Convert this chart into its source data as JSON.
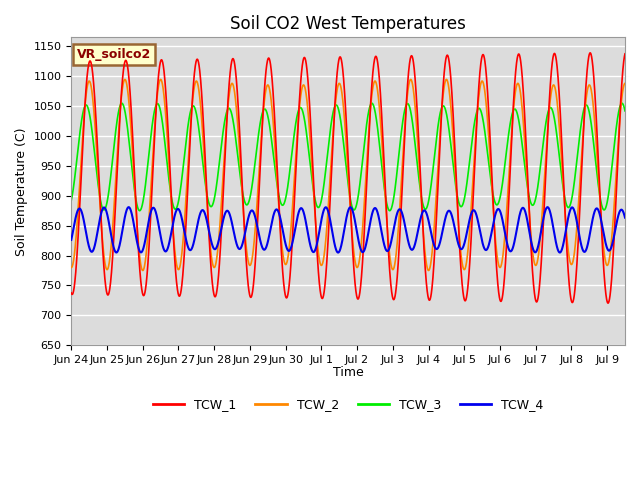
{
  "title": "Soil CO2 West Temperatures",
  "ylabel": "Soil Temperature (C)",
  "xlabel": "Time",
  "ylim": [
    650,
    1165
  ],
  "yticks": [
    650,
    700,
    750,
    800,
    850,
    900,
    950,
    1000,
    1050,
    1100,
    1150
  ],
  "annotation_text": "VR_soilco2",
  "annotation_bg": "#ffffcc",
  "annotation_border": "#996633",
  "bg_color": "#dcdcdc",
  "line_colors": {
    "TCW_1": "#ff0000",
    "TCW_2": "#ff8800",
    "TCW_3": "#00ee00",
    "TCW_4": "#0000ee"
  },
  "line_widths": {
    "TCW_1": 1.2,
    "TCW_2": 1.2,
    "TCW_3": 1.2,
    "TCW_4": 1.5
  },
  "xtick_labels": [
    "Jun 24",
    "Jun 25",
    "Jun 26",
    "Jun 27",
    "Jun 28",
    "Jun 29",
    "Jun 30",
    "Jul 1",
    "Jul 2",
    "Jul 3",
    "Jul 4",
    "Jul 5",
    "Jul 6",
    "Jul 7",
    "Jul 8",
    "Jul 9"
  ],
  "n_days": 15.5,
  "points_per_day": 200
}
